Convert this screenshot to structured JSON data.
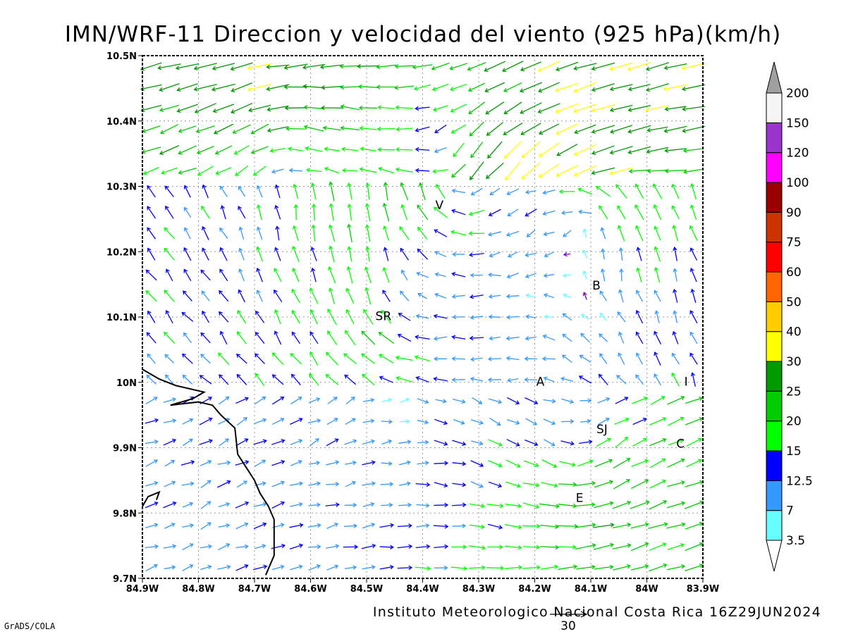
{
  "chart_data": {
    "type": "vector-field",
    "title": "IMN/WRF-11 Direccion y velocidad del viento (925 hPa)(km/h)",
    "footer": "Instituto Meteorologico Nacional Costa Rica 16Z29JUN2024",
    "credit": "GrADS/COLA",
    "reference_vector": {
      "label": "30",
      "speed": 30
    },
    "xlim": [
      -84.9,
      -83.9
    ],
    "ylim": [
      9.7,
      10.5
    ],
    "grid": true,
    "x_ticks": [
      {
        "v": -84.9,
        "label": "84.9W"
      },
      {
        "v": -84.8,
        "label": "84.8W"
      },
      {
        "v": -84.7,
        "label": "84.7W"
      },
      {
        "v": -84.6,
        "label": "84.6W"
      },
      {
        "v": -84.5,
        "label": "84.5W"
      },
      {
        "v": -84.4,
        "label": "84.4W"
      },
      {
        "v": -84.3,
        "label": "84.3W"
      },
      {
        "v": -84.2,
        "label": "84.2W"
      },
      {
        "v": -84.1,
        "label": "84.1W"
      },
      {
        "v": -84.0,
        "label": "84W"
      },
      {
        "v": -83.9,
        "label": "83.9W"
      }
    ],
    "y_ticks": [
      {
        "v": 9.7,
        "label": "9.7N"
      },
      {
        "v": 9.8,
        "label": "9.8N"
      },
      {
        "v": 9.9,
        "label": "9.9N"
      },
      {
        "v": 10.0,
        "label": "10N"
      },
      {
        "v": 10.1,
        "label": "10.1N"
      },
      {
        "v": 10.2,
        "label": "10.2N"
      },
      {
        "v": 10.3,
        "label": "10.3N"
      },
      {
        "v": 10.4,
        "label": "10.4N"
      },
      {
        "v": 10.5,
        "label": "10.5N"
      }
    ],
    "colorbar": {
      "labels": [
        "3.5",
        "7",
        "12.5",
        "15",
        "20",
        "25",
        "30",
        "40",
        "50",
        "60",
        "75",
        "90",
        "100",
        "120",
        "150",
        "200"
      ],
      "bands": [
        {
          "lo": 3.5,
          "hi": 7,
          "color": "#66ffff"
        },
        {
          "lo": 7,
          "hi": 12.5,
          "color": "#3399ff"
        },
        {
          "lo": 12.5,
          "hi": 15,
          "color": "#0000ff"
        },
        {
          "lo": 15,
          "hi": 20,
          "color": "#00ff00"
        },
        {
          "lo": 20,
          "hi": 25,
          "color": "#00cc00"
        },
        {
          "lo": 25,
          "hi": 30,
          "color": "#009900"
        },
        {
          "lo": 30,
          "hi": 40,
          "color": "#ffff00"
        },
        {
          "lo": 40,
          "hi": 50,
          "color": "#ffcc00"
        },
        {
          "lo": 50,
          "hi": 60,
          "color": "#ff6600"
        },
        {
          "lo": 60,
          "hi": 75,
          "color": "#ff0000"
        },
        {
          "lo": 75,
          "hi": 90,
          "color": "#cc3300"
        },
        {
          "lo": 90,
          "hi": 100,
          "color": "#990000"
        },
        {
          "lo": 100,
          "hi": 120,
          "color": "#ff00ff"
        },
        {
          "lo": 120,
          "hi": 150,
          "color": "#9933cc"
        },
        {
          "lo": 150,
          "hi": 200,
          "color": "#f5f5f5"
        }
      ],
      "under_color": "#ffffff",
      "over_color": "#a0a0a0"
    },
    "cities": [
      {
        "label": "V",
        "lon": -84.37,
        "lat": 10.265
      },
      {
        "label": "SR",
        "lon": -84.47,
        "lat": 10.095
      },
      {
        "label": "B",
        "lon": -84.09,
        "lat": 10.142
      },
      {
        "label": "A",
        "lon": -84.19,
        "lat": 9.995
      },
      {
        "label": "I",
        "lon": -83.93,
        "lat": 9.995
      },
      {
        "label": "SJ",
        "lon": -84.08,
        "lat": 9.922
      },
      {
        "label": "C",
        "lon": -83.94,
        "lat": 9.9
      },
      {
        "label": "E",
        "lon": -84.12,
        "lat": 9.817
      }
    ],
    "coastline": [
      [
        -84.9,
        10.02
      ],
      [
        -84.87,
        10.005
      ],
      [
        -84.84,
        9.995
      ],
      [
        -84.79,
        9.985
      ],
      [
        -84.81,
        9.975
      ],
      [
        -84.85,
        9.965
      ],
      [
        -84.8,
        9.97
      ],
      [
        -84.775,
        9.965
      ],
      [
        -84.76,
        9.95
      ],
      [
        -84.735,
        9.93
      ],
      [
        -84.73,
        9.89
      ],
      [
        -84.715,
        9.87
      ],
      [
        -84.7,
        9.85
      ],
      [
        -84.69,
        9.83
      ],
      [
        -84.675,
        9.81
      ],
      [
        -84.665,
        9.79
      ],
      [
        -84.665,
        9.755
      ],
      [
        -84.665,
        9.735
      ],
      [
        -84.68,
        9.705
      ]
    ],
    "coastline2": [
      [
        -84.9,
        9.81
      ],
      [
        -84.89,
        9.825
      ],
      [
        -84.87,
        9.832
      ],
      [
        -84.875,
        9.82
      ]
    ],
    "wind_field_note": "",
    "wind_centers": [
      {
        "lon": -84.35,
        "lat": 10.31,
        "strength": 1.0,
        "sense": -1
      },
      {
        "lon": -84.1,
        "lat": 10.25,
        "strength": 0.8,
        "sense": 1
      },
      {
        "lon": -84.45,
        "lat": 10.1,
        "strength": 0.6,
        "sense": -1
      },
      {
        "lon": -84.12,
        "lat": 9.88,
        "strength": 0.7,
        "sense": 1
      },
      {
        "lon": -84.65,
        "lat": 10.38,
        "strength": 0.6,
        "sense": 1
      }
    ]
  }
}
